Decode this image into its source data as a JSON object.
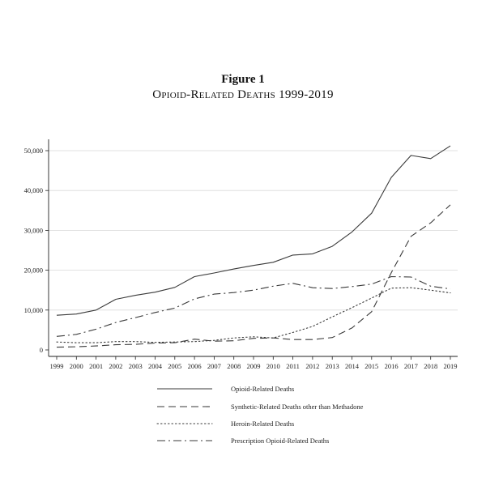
{
  "figure_label": "Figure 1",
  "figure_title": "Opioid-Related Deaths 1999-2019",
  "chart_data": {
    "type": "line",
    "x": [
      "1999",
      "2000",
      "2001",
      "2002",
      "2003",
      "2004",
      "2005",
      "2006",
      "2007",
      "2008",
      "2009",
      "2010",
      "2011",
      "2012",
      "2013",
      "2014",
      "2015",
      "2016",
      "2017",
      "2018",
      "2019"
    ],
    "ylim": [
      0,
      52000
    ],
    "yticks": [
      0,
      10000,
      20000,
      30000,
      40000,
      50000
    ],
    "ytick_labels": [
      "0",
      "10,000",
      "20,000",
      "30,000",
      "40,000",
      "50,000"
    ],
    "grid": "horizontal",
    "legend_placement": "bottom",
    "series": [
      {
        "name": "Opioid-Related Deaths",
        "style": "solid",
        "values": [
          8700,
          9000,
          10000,
          12700,
          13700,
          14500,
          15700,
          18400,
          19300,
          20300,
          21200,
          22000,
          23800,
          24100,
          26000,
          29600,
          34300,
          43300,
          48800,
          48000,
          51200
        ]
      },
      {
        "name": "Synthetic-Related Deaths other than Methadone",
        "style": "dashed",
        "values": [
          700,
          800,
          1000,
          1300,
          1400,
          1700,
          1800,
          2700,
          2200,
          2300,
          2900,
          3000,
          2600,
          2600,
          3100,
          5500,
          9600,
          19400,
          28500,
          31900,
          36400
        ]
      },
      {
        "name": "Heroin-Related Deaths",
        "style": "dotted",
        "values": [
          2000,
          1800,
          1800,
          2100,
          2100,
          1900,
          2000,
          2100,
          2400,
          3000,
          3300,
          3000,
          4400,
          5900,
          8300,
          10600,
          13000,
          15500,
          15600,
          15000,
          14300
        ]
      },
      {
        "name": "Prescription Opioid-Related Deaths",
        "style": "dashdot",
        "values": [
          3400,
          3900,
          5200,
          6900,
          8100,
          9400,
          10500,
          12800,
          14000,
          14400,
          15000,
          16000,
          16700,
          15600,
          15400,
          15900,
          16500,
          18400,
          18300,
          16000,
          15300
        ]
      }
    ]
  },
  "colors": {
    "line": "#3a3a3a",
    "grid": "#d9d9d9",
    "axis": "#222222"
  }
}
